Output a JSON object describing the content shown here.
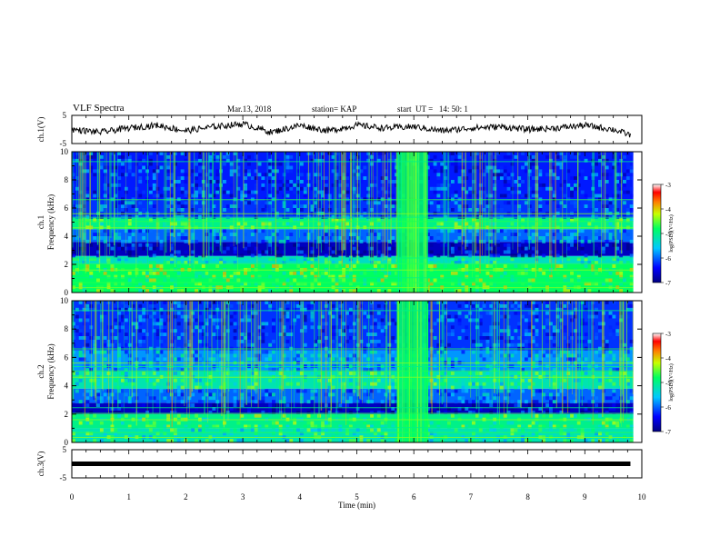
{
  "header": {
    "title": "VLF Spectra",
    "date": "Mar.13, 2018",
    "station": "station= KAP",
    "start_time": "start  UT =   14: 50: 1"
  },
  "chart_data": [
    {
      "type": "line",
      "panel": "ch.1 waveform",
      "ylabel": "ch.1(V)",
      "ylim": [
        -5,
        5
      ],
      "yticks": [
        5,
        -5
      ],
      "description_of_values": "noisy voltage trace fluctuating roughly between -3 and 3 V",
      "x": [
        0.0,
        0.5,
        1.0,
        1.5,
        2.0,
        2.5,
        3.0,
        3.5,
        4.0,
        4.5,
        5.0,
        5.5,
        6.0,
        6.5,
        7.0,
        7.5,
        8.0,
        8.5,
        9.0,
        9.5,
        9.8
      ],
      "y": [
        0.0,
        -1.0,
        0.5,
        1.5,
        -0.5,
        1.0,
        2.0,
        -1.0,
        1.5,
        -0.5,
        1.5,
        0.5,
        1.0,
        -0.5,
        0.5,
        1.0,
        0.0,
        0.5,
        1.5,
        0.0,
        -2.0
      ]
    },
    {
      "type": "heatmap",
      "panel": "ch.1 spectrogram",
      "ylabel_top": "ch.1",
      "ylabel_bottom": "Frequency  (kHz)",
      "ylim": [
        0,
        10
      ],
      "yticks": [
        "0",
        "2",
        "4",
        "6",
        "8",
        "10"
      ],
      "colorbar": {
        "label": "log(PSD)(V²/Hz)",
        "ticks": [
          "-3",
          "-4",
          "-5",
          "-6",
          "-7"
        ],
        "range": [
          -7,
          -3
        ]
      },
      "bands": [
        {
          "from": 0,
          "to": 1,
          "level": -4.8
        },
        {
          "from": 1,
          "to": 2,
          "level": -4.8
        },
        {
          "from": 2,
          "to": 2.6,
          "level": -5.3
        },
        {
          "from": 2.6,
          "to": 3.6,
          "level": -6.7
        },
        {
          "from": 3.6,
          "to": 4.5,
          "level": -6.0
        },
        {
          "from": 4.5,
          "to": 5.3,
          "level": -5.0
        },
        {
          "from": 5.3,
          "to": 6.6,
          "level": -6.2
        },
        {
          "from": 6.6,
          "to": 10,
          "level": -6.3
        }
      ],
      "burst_minutes": [
        5.7,
        6.25
      ]
    },
    {
      "type": "heatmap",
      "panel": "ch.2 spectrogram",
      "ylabel_top": "ch.2",
      "ylabel_bottom": "Frequency  (kHz)",
      "ylim": [
        0,
        10
      ],
      "yticks": [
        "0",
        "2",
        "4",
        "6",
        "8",
        "10"
      ],
      "colorbar": {
        "label": "log(PSD)(V²/Hz)",
        "ticks": [
          "-3",
          "-4",
          "-5",
          "-6",
          "-7"
        ],
        "range": [
          -7,
          -3
        ]
      },
      "bands": [
        {
          "from": 0,
          "to": 1,
          "level": -5.2
        },
        {
          "from": 1,
          "to": 2,
          "level": -5.0
        },
        {
          "from": 2,
          "to": 2.8,
          "level": -6.7
        },
        {
          "from": 2.8,
          "to": 3.8,
          "level": -6.0
        },
        {
          "from": 3.8,
          "to": 5.0,
          "level": -5.2
        },
        {
          "from": 5.0,
          "to": 6.5,
          "level": -5.8
        },
        {
          "from": 6.5,
          "to": 10,
          "level": -6.2
        }
      ],
      "burst_minutes": [
        5.7,
        6.25
      ]
    },
    {
      "type": "line",
      "panel": "ch.3 waveform",
      "ylabel": "ch.3(V)",
      "ylim": [
        -5,
        5
      ],
      "yticks": [
        "5",
        "-5"
      ],
      "x": [
        0,
        9.8
      ],
      "y": [
        0,
        0
      ]
    }
  ],
  "xaxis": {
    "label": "Time  (min)",
    "ticks": [
      "0",
      "1",
      "2",
      "3",
      "4",
      "5",
      "6",
      "7",
      "8",
      "9",
      "10"
    ],
    "range": [
      0,
      10
    ]
  }
}
